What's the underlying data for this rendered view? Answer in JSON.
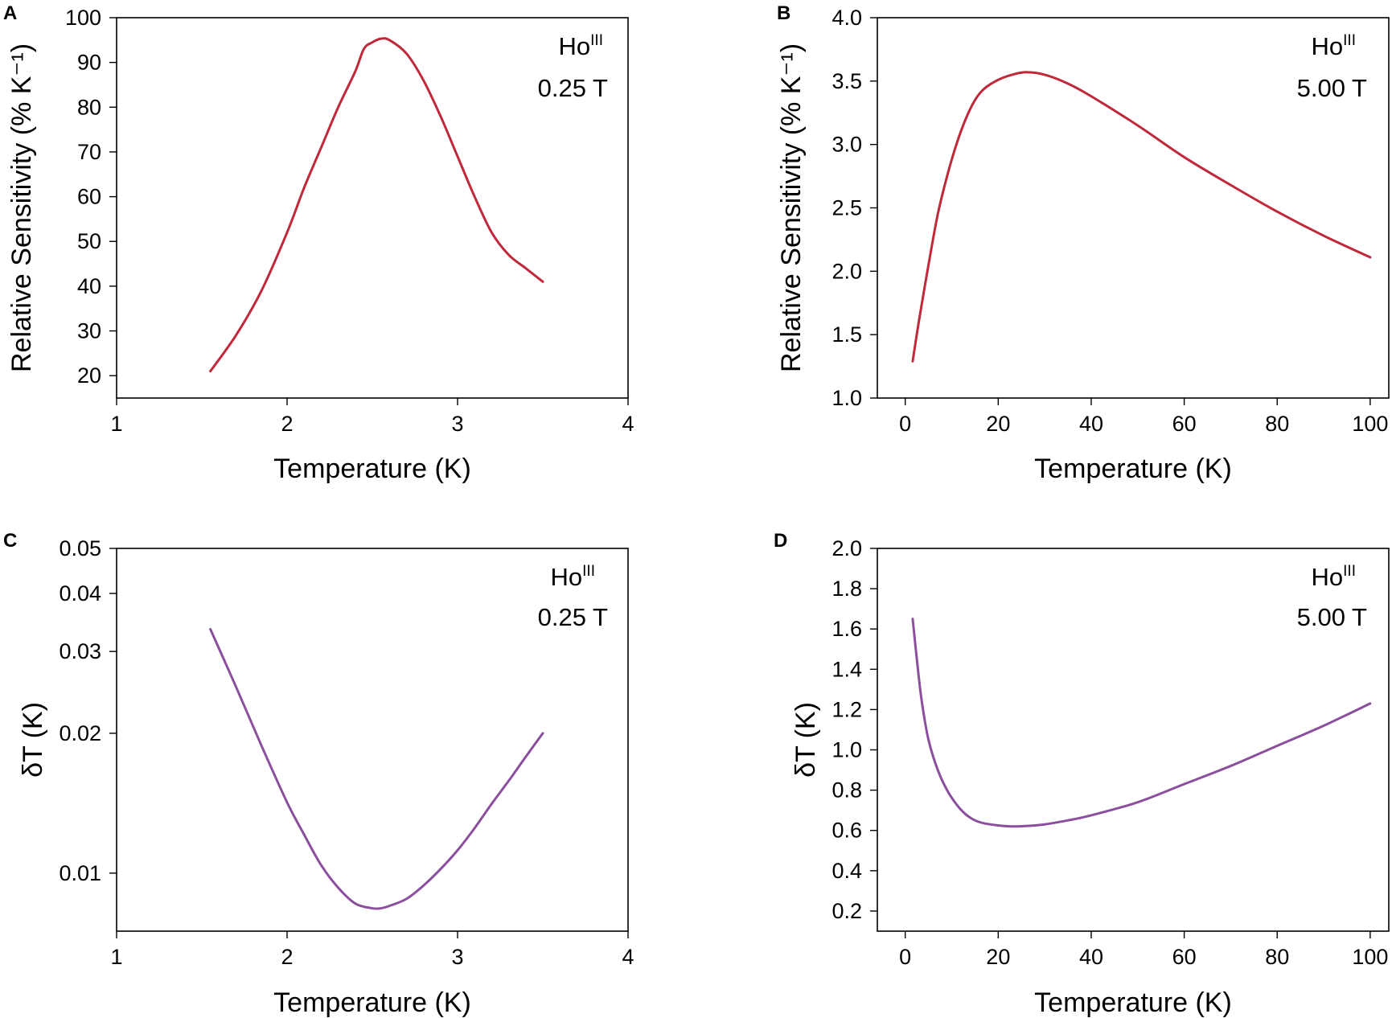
{
  "chart_data": [
    {
      "panel": "A",
      "type": "line",
      "xlabel": "Temperature (K)",
      "ylabel": "Relative Sensitivity (% K⁻¹)",
      "xlim": [
        1,
        4
      ],
      "ylim": [
        15,
        100
      ],
      "yscale": "linear",
      "xticks": [
        1,
        2,
        3,
        4
      ],
      "xtick_labels": [
        "1",
        "2",
        "3",
        "4"
      ],
      "yticks": [
        20,
        30,
        40,
        50,
        60,
        70,
        80,
        90,
        100
      ],
      "ytick_labels": [
        "20",
        "30",
        "40",
        "50",
        "60",
        "70",
        "80",
        "90",
        "100"
      ],
      "annotation": {
        "element": "Ho",
        "superscript": "III",
        "field": "0.25 T"
      },
      "series": [
        {
          "color": "#c0293a",
          "x": [
            1.55,
            1.7,
            1.85,
            2.0,
            2.1,
            2.2,
            2.3,
            2.4,
            2.45,
            2.5,
            2.55,
            2.6,
            2.7,
            2.8,
            2.9,
            3.0,
            3.1,
            3.2,
            3.3,
            3.4,
            3.5
          ],
          "y": [
            21,
            29,
            39,
            52,
            62,
            71,
            80,
            88,
            93,
            94.5,
            95.3,
            95,
            92,
            86,
            78,
            69,
            60,
            52,
            47,
            44,
            41
          ]
        }
      ]
    },
    {
      "panel": "B",
      "type": "line",
      "xlabel": "Temperature (K)",
      "ylabel": "Relative Sensitivity (% K⁻¹)",
      "xlim": [
        -6,
        104
      ],
      "ylim": [
        1.0,
        4.0
      ],
      "yscale": "linear",
      "xticks": [
        0,
        20,
        40,
        60,
        80,
        100
      ],
      "xtick_labels": [
        "0",
        "20",
        "40",
        "60",
        "80",
        "100"
      ],
      "yticks": [
        1.0,
        1.5,
        2.0,
        2.5,
        3.0,
        3.5,
        4.0
      ],
      "ytick_labels": [
        "1.0",
        "1.5",
        "2.0",
        "2.5",
        "3.0",
        "3.5",
        "4.0"
      ],
      "annotation": {
        "element": "Ho",
        "superscript": "III",
        "field": "5.00 T"
      },
      "series": [
        {
          "color": "#c0293a",
          "x": [
            1.6,
            3,
            5,
            7,
            9,
            11,
            13,
            15,
            17,
            20,
            23,
            26,
            30,
            35,
            40,
            50,
            60,
            70,
            80,
            90,
            100
          ],
          "y": [
            1.29,
            1.62,
            2.05,
            2.45,
            2.75,
            3.0,
            3.2,
            3.35,
            3.44,
            3.51,
            3.55,
            3.57,
            3.55,
            3.48,
            3.38,
            3.15,
            2.9,
            2.68,
            2.47,
            2.28,
            2.11
          ]
        }
      ]
    },
    {
      "panel": "C",
      "type": "line",
      "xlabel": "Temperature (K)",
      "ylabel": "δT (K)",
      "xlim": [
        1,
        4
      ],
      "ylim": [
        0.0075,
        0.05
      ],
      "yscale": "log",
      "xticks": [
        1,
        2,
        3,
        4
      ],
      "xtick_labels": [
        "1",
        "2",
        "3",
        "4"
      ],
      "yticks": [
        0.01,
        0.02,
        0.03,
        0.04,
        0.05
      ],
      "ytick_labels": [
        "0.01",
        "0.02",
        "0.03",
        "0.04",
        "0.05"
      ],
      "annotation": {
        "element": "Ho",
        "superscript": "III",
        "field": "0.25 T"
      },
      "series": [
        {
          "color": "#8b4f9e",
          "x": [
            1.55,
            1.7,
            1.85,
            2.0,
            2.1,
            2.2,
            2.3,
            2.4,
            2.5,
            2.55,
            2.6,
            2.7,
            2.8,
            2.9,
            3.0,
            3.1,
            3.2,
            3.3,
            3.4,
            3.5
          ],
          "y": [
            0.0335,
            0.0252,
            0.0188,
            0.0142,
            0.0121,
            0.0104,
            0.0093,
            0.0086,
            0.0084,
            0.0084,
            0.0085,
            0.0088,
            0.0094,
            0.0102,
            0.0112,
            0.0125,
            0.0141,
            0.0158,
            0.0178,
            0.02
          ]
        }
      ]
    },
    {
      "panel": "D",
      "type": "line",
      "xlabel": "Temperature (K)",
      "ylabel": "δT (K)",
      "xlim": [
        -6,
        104
      ],
      "ylim": [
        0.1,
        2.0
      ],
      "yscale": "linear",
      "xticks": [
        0,
        20,
        40,
        60,
        80,
        100
      ],
      "xtick_labels": [
        "0",
        "20",
        "40",
        "60",
        "80",
        "100"
      ],
      "yticks": [
        0.2,
        0.4,
        0.6,
        0.8,
        1.0,
        1.2,
        1.4,
        1.6,
        1.8,
        2.0
      ],
      "ytick_labels": [
        "0.2",
        "0.4",
        "0.6",
        "0.8",
        "1.0",
        "1.2",
        "1.4",
        "1.6",
        "1.8",
        "2.0"
      ],
      "annotation": {
        "element": "Ho",
        "superscript": "III",
        "field": "5.00 T"
      },
      "series": [
        {
          "color": "#8b4f9e",
          "x": [
            1.6,
            2.5,
            3.5,
            5,
            7,
            9,
            11,
            13,
            15,
            17,
            20,
            23,
            26,
            30,
            35,
            40,
            50,
            60,
            70,
            80,
            90,
            100
          ],
          "y": [
            1.65,
            1.45,
            1.25,
            1.05,
            0.9,
            0.8,
            0.73,
            0.68,
            0.65,
            0.635,
            0.625,
            0.62,
            0.622,
            0.63,
            0.65,
            0.675,
            0.74,
            0.83,
            0.92,
            1.02,
            1.12,
            1.23
          ]
        }
      ]
    }
  ]
}
